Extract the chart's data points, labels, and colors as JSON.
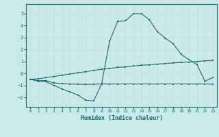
{
  "title": "",
  "xlabel": "Humidex (Indice chaleur)",
  "bg_color": "#c8eaea",
  "line_color": "#1a6b6b",
  "grid_color": "#d8d8d8",
  "x_ticks": [
    0,
    1,
    2,
    3,
    4,
    5,
    6,
    7,
    8,
    9,
    10,
    11,
    12,
    13,
    14,
    15,
    16,
    17,
    18,
    19,
    20,
    21,
    22,
    23
  ],
  "y_ticks": [
    -2,
    -1,
    0,
    1,
    2,
    3,
    4,
    5
  ],
  "xlim": [
    -0.5,
    23.5
  ],
  "ylim": [
    -2.8,
    5.8
  ],
  "curve1_x": [
    0,
    1,
    2,
    3,
    4,
    5,
    6,
    7,
    8,
    9,
    10,
    11,
    12,
    13,
    14,
    15,
    16,
    17,
    18,
    19,
    20,
    21,
    22,
    23
  ],
  "curve1_y": [
    -0.5,
    -0.65,
    -0.7,
    -1.0,
    -1.3,
    -1.55,
    -1.8,
    -2.25,
    -2.3,
    -0.85,
    2.7,
    4.35,
    4.4,
    5.0,
    5.0,
    4.5,
    3.5,
    2.95,
    2.5,
    1.6,
    1.15,
    0.75,
    -0.65,
    -0.35
  ],
  "curve2_x": [
    0,
    1,
    2,
    3,
    4,
    5,
    6,
    7,
    8,
    9,
    10,
    11,
    12,
    13,
    14,
    15,
    16,
    17,
    18,
    19,
    20,
    21,
    22,
    23
  ],
  "curve2_y": [
    -0.5,
    -0.45,
    -0.35,
    -0.25,
    -0.15,
    -0.05,
    0.05,
    0.15,
    0.25,
    0.35,
    0.42,
    0.5,
    0.55,
    0.62,
    0.68,
    0.72,
    0.78,
    0.82,
    0.88,
    0.92,
    0.95,
    1.0,
    1.05,
    1.1
  ],
  "curve3_x": [
    0,
    1,
    2,
    3,
    4,
    5,
    6,
    7,
    8,
    9,
    10,
    11,
    12,
    13,
    14,
    15,
    16,
    17,
    18,
    19,
    20,
    21,
    22,
    23
  ],
  "curve3_y": [
    -0.5,
    -0.6,
    -0.6,
    -0.8,
    -0.85,
    -0.88,
    -0.9,
    -0.92,
    -0.9,
    -0.88,
    -0.88,
    -0.88,
    -0.88,
    -0.88,
    -0.88,
    -0.88,
    -0.88,
    -0.88,
    -0.88,
    -0.88,
    -0.88,
    -0.88,
    -0.88,
    -0.9
  ]
}
